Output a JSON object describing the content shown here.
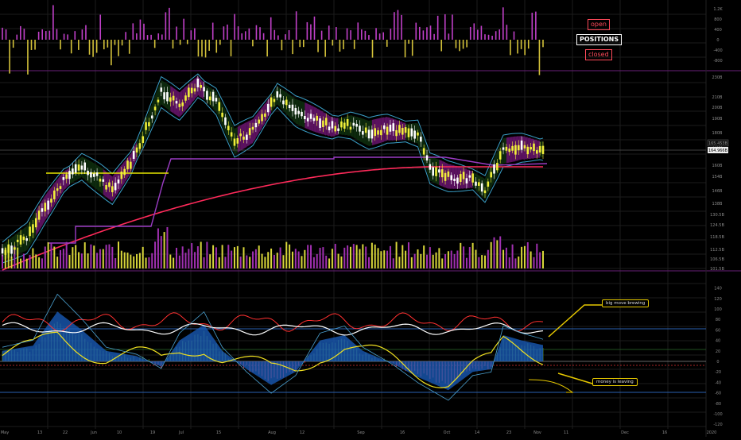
{
  "chart_data": {
    "type": "candlestick-with-indicators",
    "x_ticks": [
      "May",
      "13",
      "22",
      "Jun",
      "10",
      "19",
      "Jul",
      "15",
      "Aug",
      "12",
      "Sep",
      "16",
      "Oct",
      "14",
      "23",
      "Nov",
      "11",
      "Dec",
      "16",
      "2020"
    ],
    "top_pane": {
      "y_ticks": [
        "1.2K",
        "800",
        "400",
        "0",
        "-400",
        "-800"
      ],
      "legend": {
        "open": "open",
        "positions": "POSITIONS",
        "closed": "closed"
      },
      "colors": {
        "positive": "#c040c8",
        "negative": "#d4c23a"
      }
    },
    "price_pane": {
      "y_ticks": [
        "230B",
        "210B",
        "200B",
        "190B",
        "180B",
        "170B",
        "160B",
        "154B",
        "146B",
        "138B",
        "130.5B",
        "124.5B",
        "118.5B",
        "112.5B",
        "106.5B",
        "101.5B",
        "96.7B"
      ],
      "last_price_labels": [
        "165.453B",
        "164.966B"
      ],
      "colors": {
        "up": "#f0ef3a",
        "down": "#ffffff",
        "band_green": "#0e2f0e",
        "band_purple": "#6a146e",
        "envelope": "#3aa0c8",
        "slow_ma": "#ff2a5a",
        "support": "#9b3cc4",
        "resistance": "#e6e600"
      }
    },
    "oscillator_pane": {
      "y_ticks": [
        "140",
        "120",
        "100",
        "80",
        "60",
        "40",
        "20",
        "0",
        "-20",
        "-40",
        "-60",
        "-80",
        "-100",
        "-120"
      ],
      "annotations": [
        "big move brewing",
        "money is leaving"
      ],
      "colors": {
        "area": "#1a5fc0",
        "hist_pos": "#4c7a2a",
        "hist_neg": "#ff4040",
        "line_red": "#ff3030",
        "line_white": "#ffffff",
        "line_yellow": "#f0e020",
        "line_cyan": "#4aa0d0"
      }
    }
  }
}
